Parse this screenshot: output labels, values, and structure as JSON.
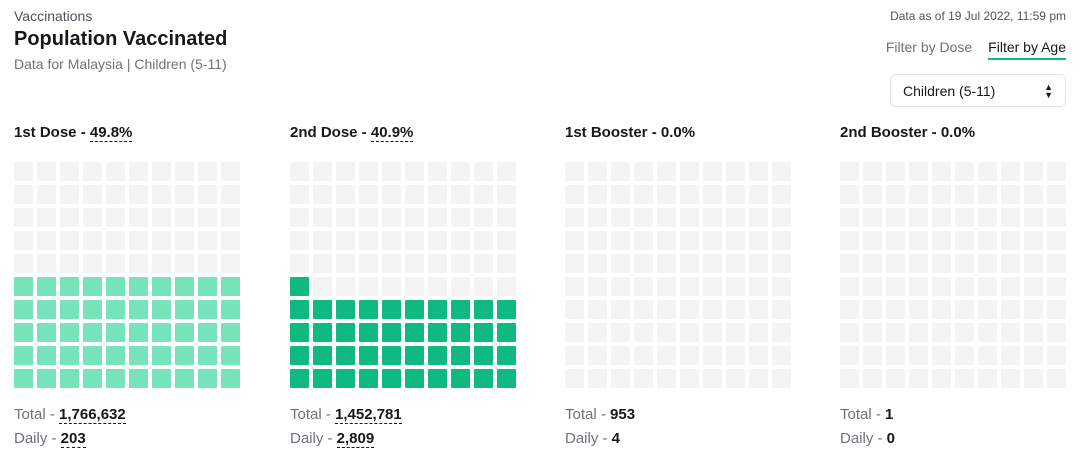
{
  "header": {
    "eyebrow": "Vaccinations",
    "title": "Population Vaccinated",
    "subtitle": "Data for Malaysia | Children (5-11)",
    "as_of": "Data as of 19 Jul 2022, 11:59 pm"
  },
  "filters": {
    "by_dose": "Filter by Dose",
    "by_age": "Filter by Age",
    "active": "by_age"
  },
  "age_select": {
    "value": "Children (5-11)"
  },
  "colors": {
    "empty": "#f4f4f5",
    "accent": "#10b981"
  },
  "cards": [
    {
      "title": "1st Dose - ",
      "percent_label": "49.8%",
      "percent": 49.8,
      "color": "#76e4b8",
      "total_label": "Total - ",
      "total": "1,766,632",
      "daily_label": "Daily - ",
      "daily": "203",
      "underline": true
    },
    {
      "title": "2nd Dose - ",
      "percent_label": "40.9%",
      "percent": 40.9,
      "color": "#10b981",
      "total_label": "Total - ",
      "total": "1,452,781",
      "daily_label": "Daily - ",
      "daily": "2,809",
      "underline": true
    },
    {
      "title": "1st Booster - ",
      "percent_label": "0.0%",
      "percent": 0.0,
      "color": "#10b981",
      "total_label": "Total - ",
      "total": "953",
      "daily_label": "Daily - ",
      "daily": "4",
      "underline": false
    },
    {
      "title": "2nd Booster - ",
      "percent_label": "0.0%",
      "percent": 0.0,
      "color": "#10b981",
      "total_label": "Total - ",
      "total": "1",
      "daily_label": "Daily - ",
      "daily": "0",
      "underline": false
    }
  ]
}
